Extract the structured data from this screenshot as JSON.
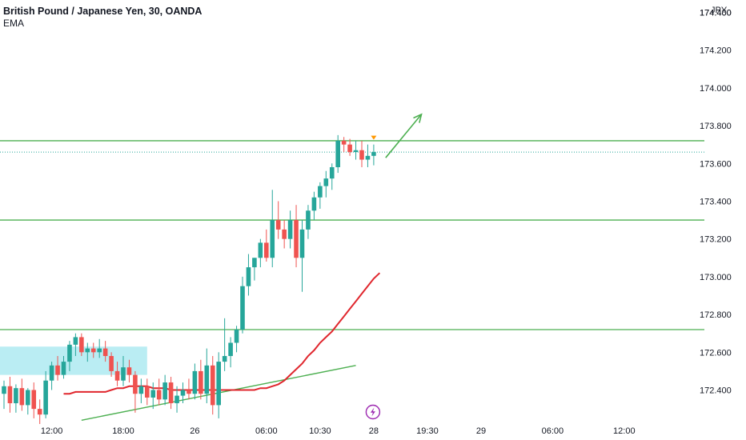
{
  "header": {
    "title": "British Pound / Japanese Yen, 30, OANDA",
    "indicator": "EMA"
  },
  "colors": {
    "up": "#26a69a",
    "down": "#ef5350",
    "ema": "#e0262d",
    "levels": "#4caf50",
    "zone": "#b2ebf2",
    "last_price_line": "#26a69a",
    "event_icon": "#9c27b0",
    "marker": "#ff9800"
  },
  "icons": {
    "event": "lightning-icon",
    "marker": "triangle-down-icon"
  },
  "chart_data": {
    "type": "candlestick",
    "currency": "JPY",
    "y_ticks": [
      "174.400",
      "174.200",
      "174.000",
      "173.800",
      "173.600",
      "173.400",
      "173.200",
      "173.000",
      "172.800",
      "172.600",
      "172.400"
    ],
    "y_range": [
      172.22,
      174.44
    ],
    "x_ticks": [
      {
        "label": "12:00",
        "bar": 8,
        "bold": false
      },
      {
        "label": "18:00",
        "bar": 20,
        "bold": false
      },
      {
        "label": "26",
        "bar": 32,
        "bold": false
      },
      {
        "label": "06:00",
        "bar": 44,
        "bold": false
      },
      {
        "label": "10:30",
        "bar": 53,
        "bold": false
      },
      {
        "label": "28",
        "bar": 62,
        "bold": false
      },
      {
        "label": "19:30",
        "bar": 71,
        "bold": false
      },
      {
        "label": "29",
        "bar": 80,
        "bold": false
      },
      {
        "label": "06:00",
        "bar": 92,
        "bold": false
      },
      {
        "label": "12:00",
        "bar": 104,
        "bold": false
      }
    ],
    "candles": [
      [
        172.38,
        172.45,
        172.3,
        172.42
      ],
      [
        172.42,
        172.47,
        172.28,
        172.33
      ],
      [
        172.33,
        172.43,
        172.28,
        172.41
      ],
      [
        172.41,
        172.46,
        172.29,
        172.32
      ],
      [
        172.32,
        172.41,
        172.27,
        172.4
      ],
      [
        172.4,
        172.44,
        172.25,
        172.3
      ],
      [
        172.3,
        172.35,
        172.22,
        172.27
      ],
      [
        172.27,
        172.5,
        172.25,
        172.45
      ],
      [
        172.45,
        172.55,
        172.4,
        172.53
      ],
      [
        172.53,
        172.58,
        172.45,
        172.48
      ],
      [
        172.48,
        172.58,
        172.46,
        172.55
      ],
      [
        172.55,
        172.66,
        172.5,
        172.64
      ],
      [
        172.64,
        172.7,
        172.58,
        172.68
      ],
      [
        172.68,
        172.7,
        172.58,
        172.6
      ],
      [
        172.6,
        172.65,
        172.55,
        172.62
      ],
      [
        172.62,
        172.65,
        172.57,
        172.6
      ],
      [
        172.6,
        172.67,
        172.57,
        172.62
      ],
      [
        172.62,
        172.66,
        172.55,
        172.58
      ],
      [
        172.58,
        172.6,
        172.47,
        172.5
      ],
      [
        172.5,
        172.55,
        172.42,
        172.45
      ],
      [
        172.45,
        172.58,
        172.42,
        172.52
      ],
      [
        172.52,
        172.56,
        172.44,
        172.48
      ],
      [
        172.48,
        172.5,
        172.28,
        172.38
      ],
      [
        172.38,
        172.46,
        172.33,
        172.42
      ],
      [
        172.42,
        172.46,
        172.32,
        172.36
      ],
      [
        172.36,
        172.44,
        172.3,
        172.4
      ],
      [
        172.4,
        172.46,
        172.32,
        172.35
      ],
      [
        172.35,
        172.48,
        172.32,
        172.44
      ],
      [
        172.44,
        172.47,
        172.3,
        172.33
      ],
      [
        172.33,
        172.42,
        172.28,
        172.37
      ],
      [
        172.37,
        172.44,
        172.33,
        172.4
      ],
      [
        172.4,
        172.46,
        172.35,
        172.38
      ],
      [
        172.38,
        172.54,
        172.35,
        172.5
      ],
      [
        172.5,
        172.56,
        172.35,
        172.38
      ],
      [
        172.38,
        172.62,
        172.33,
        172.53
      ],
      [
        172.53,
        172.58,
        172.27,
        172.32
      ],
      [
        172.32,
        172.6,
        172.25,
        172.55
      ],
      [
        172.55,
        172.78,
        172.5,
        172.58
      ],
      [
        172.58,
        172.68,
        172.52,
        172.65
      ],
      [
        172.65,
        172.74,
        172.6,
        172.72
      ],
      [
        172.72,
        173.0,
        172.7,
        172.95
      ],
      [
        172.95,
        173.12,
        172.9,
        173.05
      ],
      [
        173.05,
        173.1,
        172.98,
        173.1
      ],
      [
        173.1,
        173.2,
        173.05,
        173.18
      ],
      [
        173.18,
        173.25,
        173.08,
        173.1
      ],
      [
        173.1,
        173.46,
        173.05,
        173.3
      ],
      [
        173.3,
        173.4,
        173.2,
        173.25
      ],
      [
        173.25,
        173.3,
        173.15,
        173.2
      ],
      [
        173.2,
        173.35,
        173.15,
        173.3
      ],
      [
        173.3,
        173.38,
        173.05,
        173.1
      ],
      [
        173.1,
        173.3,
        172.92,
        173.25
      ],
      [
        173.25,
        173.38,
        173.2,
        173.35
      ],
      [
        173.35,
        173.45,
        173.3,
        173.42
      ],
      [
        173.42,
        173.5,
        173.36,
        173.48
      ],
      [
        173.48,
        173.56,
        173.42,
        173.52
      ],
      [
        173.52,
        173.6,
        173.46,
        173.58
      ],
      [
        173.58,
        173.75,
        173.55,
        173.72
      ],
      [
        173.72,
        173.74,
        173.66,
        173.7
      ],
      [
        173.7,
        173.73,
        173.64,
        173.66
      ],
      [
        173.66,
        173.72,
        173.62,
        173.67
      ],
      [
        173.67,
        173.72,
        173.58,
        173.62
      ],
      [
        173.62,
        173.7,
        173.58,
        173.64
      ],
      [
        173.64,
        173.7,
        173.59,
        173.66
      ]
    ],
    "ema": [
      172.38,
      172.38,
      172.39,
      172.39,
      172.39,
      172.39,
      172.39,
      172.39,
      172.4,
      172.41,
      172.41,
      172.42,
      172.42,
      172.42,
      172.42,
      172.41,
      172.41,
      172.41,
      172.4,
      172.4,
      172.4,
      172.4,
      172.4,
      172.4,
      172.4,
      172.4,
      172.4,
      172.4,
      172.4,
      172.4,
      172.4,
      172.4,
      172.4,
      172.41,
      172.41,
      172.42,
      172.43,
      172.45,
      172.48,
      172.51,
      172.54,
      172.58,
      172.61,
      172.65,
      172.68,
      172.71,
      172.75,
      172.79,
      172.83,
      172.87,
      172.91,
      172.95,
      172.99,
      173.02
    ],
    "ema_start_bar": 10,
    "levels": [
      173.72,
      173.3,
      172.72
    ],
    "last_price": 173.66,
    "zone": {
      "x_from": -1,
      "x_to": 24,
      "y_from": 172.63,
      "y_to": 172.48
    },
    "trendline": {
      "from": [
        13,
        172.24
      ],
      "to": [
        59,
        172.53
      ]
    },
    "arrow": {
      "from": [
        64,
        173.63
      ],
      "to": [
        70,
        173.86
      ]
    },
    "event_bar": 62,
    "marker": {
      "bar": 62,
      "price": 173.73
    }
  }
}
